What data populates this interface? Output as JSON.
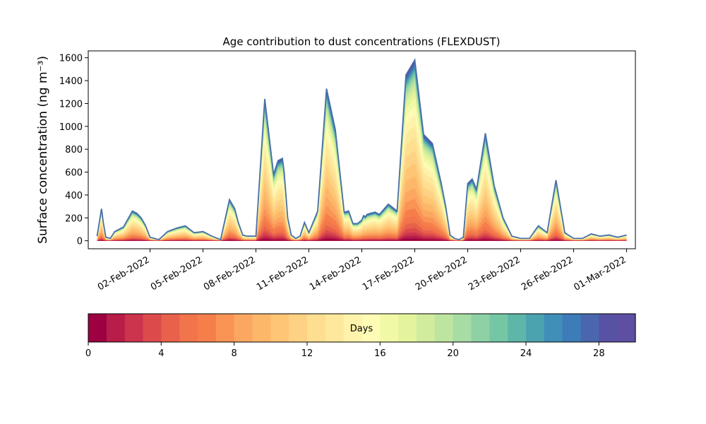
{
  "chart_data": [
    {
      "type": "area",
      "title": "Age contribution to dust concentrations (FLEXDUST)",
      "ylabel": "Surface concentration (ng m⁻³)",
      "xlabel": "",
      "ylim": [
        -70,
        1660
      ],
      "yticks": [
        0,
        200,
        400,
        600,
        800,
        1000,
        1200,
        1400,
        1600
      ],
      "xticklabels": [
        "02-Feb-2022",
        "05-Feb-2022",
        "08-Feb-2022",
        "11-Feb-2022",
        "14-Feb-2022",
        "17-Feb-2022",
        "20-Feb-2022",
        "23-Feb-2022",
        "26-Feb-2022",
        "01-Mar-2022"
      ],
      "xlim_days": [
        29.5,
        60.5
      ],
      "total_line_color": "#4a6fa8",
      "series_total": {
        "x_day": [
          30.0,
          30.25,
          30.35,
          30.5,
          30.75,
          31.0,
          31.5,
          32.0,
          32.25,
          32.5,
          32.75,
          33.0,
          33.5,
          34.0,
          34.5,
          35.0,
          35.5,
          36.0,
          36.5,
          37.0,
          37.5,
          37.8,
          38.0,
          38.25,
          38.5,
          39.0,
          39.5,
          40.0,
          40.25,
          40.5,
          40.6,
          40.8,
          41.0,
          41.25,
          41.5,
          41.75,
          42.0,
          42.5,
          43.0,
          43.5,
          44.0,
          44.25,
          44.5,
          44.75,
          45.0,
          45.1,
          45.2,
          45.3,
          45.5,
          45.75,
          46.0,
          46.5,
          47.0,
          47.5,
          48.0,
          48.5,
          49.0,
          49.5,
          49.75,
          50.0,
          50.25,
          50.5,
          50.75,
          51.0,
          51.25,
          51.5,
          52.0,
          52.5,
          53.0,
          53.5,
          54.0,
          54.5,
          55.0,
          55.5,
          56.0,
          56.5,
          57.0,
          57.5,
          58.0,
          58.5,
          59.0,
          59.5,
          60.0
        ],
        "y": [
          40,
          280,
          160,
          30,
          20,
          80,
          120,
          260,
          240,
          200,
          130,
          30,
          10,
          80,
          110,
          130,
          70,
          80,
          40,
          10,
          360,
          280,
          160,
          50,
          40,
          40,
          1240,
          580,
          700,
          720,
          600,
          200,
          50,
          20,
          40,
          160,
          70,
          260,
          1330,
          970,
          250,
          260,
          150,
          150,
          180,
          220,
          210,
          230,
          240,
          250,
          230,
          320,
          260,
          1450,
          1580,
          930,
          850,
          500,
          300,
          50,
          20,
          10,
          30,
          500,
          540,
          450,
          940,
          480,
          200,
          40,
          20,
          20,
          130,
          70,
          530,
          70,
          20,
          20,
          60,
          40,
          50,
          30,
          50
        ]
      },
      "colorbar": {
        "label": "Days",
        "range": [
          0,
          30
        ],
        "ticks": [
          0,
          4,
          8,
          12,
          16,
          20,
          24,
          28
        ],
        "colors": [
          "#9e0142",
          "#b81c48",
          "#cc334c",
          "#dc4a4c",
          "#e8614b",
          "#f1744b",
          "#f67e4b",
          "#f99455",
          "#fca761",
          "#fdb769",
          "#fec574",
          "#fed284",
          "#fede90",
          "#fee89b",
          "#fff2aa",
          "#fdfbb5",
          "#f2f9a6",
          "#e4f49c",
          "#d1ec9c",
          "#bee5a0",
          "#a7dca4",
          "#8dd1a4",
          "#75c7a4",
          "#5eb6a9",
          "#4ca3b0",
          "#3f8fb8",
          "#3d7cb8",
          "#4a67ae",
          "#5752a3",
          "#5e4fa2"
        ]
      }
    }
  ]
}
